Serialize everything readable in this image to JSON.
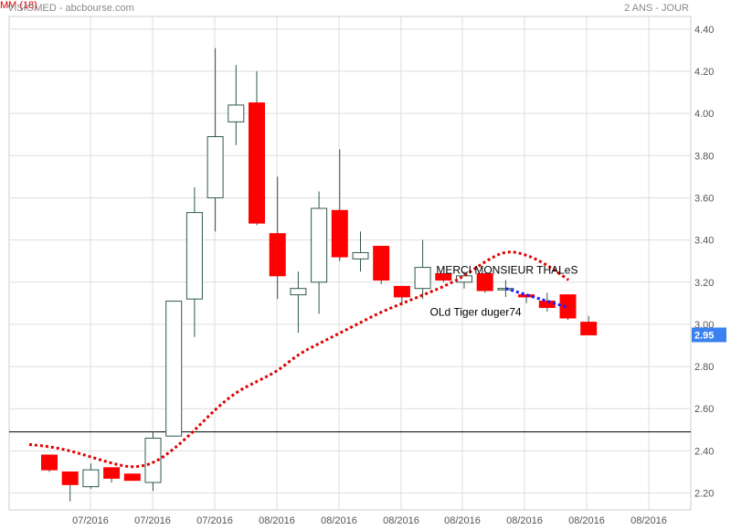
{
  "header": {
    "title": "VISIOMED - abcbourse.com",
    "period": "2 ANS - JOUR",
    "indicator": "MM (18)"
  },
  "colors": {
    "up_body": "#ffffff",
    "up_border": "#2f5a47",
    "down_body": "#ff0000",
    "wick": "#2f5a47",
    "ma": "#e00000",
    "trendline": "#1a1aff",
    "support": "#000000",
    "grid": "#dddddd",
    "price_badge": "#3b82f0"
  },
  "chart_data": {
    "type": "candlestick",
    "ylim": [
      2.12,
      4.46
    ],
    "y_ticks": [
      "2.20",
      "2.40",
      "2.60",
      "2.80",
      "3.00",
      "3.20",
      "3.40",
      "3.60",
      "3.80",
      "4.00",
      "4.20",
      "4.40"
    ],
    "x_ticks": [
      "07/2016",
      "07/2016",
      "07/2016",
      "08/2016",
      "08/2016",
      "08/2016",
      "08/2016",
      "08/2016",
      "08/2016",
      "08/2016"
    ],
    "candles": [
      {
        "o": 2.38,
        "h": 2.38,
        "l": 2.3,
        "c": 2.31
      },
      {
        "o": 2.3,
        "h": 2.3,
        "l": 2.16,
        "c": 2.24
      },
      {
        "o": 2.23,
        "h": 2.34,
        "l": 2.22,
        "c": 2.31
      },
      {
        "o": 2.32,
        "h": 2.32,
        "l": 2.25,
        "c": 2.27
      },
      {
        "o": 2.29,
        "h": 2.29,
        "l": 2.26,
        "c": 2.26
      },
      {
        "o": 2.25,
        "h": 2.49,
        "l": 2.21,
        "c": 2.46
      },
      {
        "o": 2.47,
        "h": 3.11,
        "l": 2.47,
        "c": 3.11
      },
      {
        "o": 3.12,
        "h": 3.65,
        "l": 2.94,
        "c": 3.53
      },
      {
        "o": 3.6,
        "h": 4.31,
        "l": 3.44,
        "c": 3.89
      },
      {
        "o": 3.96,
        "h": 4.23,
        "l": 3.85,
        "c": 4.04
      },
      {
        "o": 4.05,
        "h": 4.2,
        "l": 3.47,
        "c": 3.48
      },
      {
        "o": 3.43,
        "h": 3.7,
        "l": 3.12,
        "c": 3.23
      },
      {
        "o": 3.14,
        "h": 3.25,
        "l": 2.96,
        "c": 3.17
      },
      {
        "o": 3.2,
        "h": 3.63,
        "l": 3.05,
        "c": 3.55
      },
      {
        "o": 3.54,
        "h": 3.83,
        "l": 3.3,
        "c": 3.32
      },
      {
        "o": 3.31,
        "h": 3.44,
        "l": 3.25,
        "c": 3.34
      },
      {
        "o": 3.37,
        "h": 3.37,
        "l": 3.19,
        "c": 3.21
      },
      {
        "o": 3.18,
        "h": 3.18,
        "l": 3.09,
        "c": 3.13
      },
      {
        "o": 3.17,
        "h": 3.4,
        "l": 3.12,
        "c": 3.27
      },
      {
        "o": 3.24,
        "h": 3.24,
        "l": 3.2,
        "c": 3.21
      },
      {
        "o": 3.2,
        "h": 3.25,
        "l": 3.17,
        "c": 3.23
      },
      {
        "o": 3.24,
        "h": 3.24,
        "l": 3.15,
        "c": 3.16
      },
      {
        "o": 3.17,
        "h": 3.21,
        "l": 3.13,
        "c": 3.17
      },
      {
        "o": 3.14,
        "h": 3.14,
        "l": 3.1,
        "c": 3.13
      },
      {
        "o": 3.11,
        "h": 3.15,
        "l": 3.06,
        "c": 3.08
      },
      {
        "o": 3.14,
        "h": 3.14,
        "l": 3.02,
        "c": 3.03
      },
      {
        "o": 3.01,
        "h": 3.04,
        "l": 2.95,
        "c": 2.95
      }
    ],
    "moving_average": {
      "name": "MM (18)",
      "values": [
        2.43,
        2.42,
        2.4,
        2.37,
        2.34,
        2.32,
        2.34,
        2.41,
        2.5,
        2.6,
        2.68,
        2.73,
        2.78,
        2.86,
        2.91,
        2.96,
        3.01,
        3.06,
        3.1,
        3.14,
        3.18,
        3.23,
        3.3,
        3.35,
        3.33,
        3.28,
        3.21
      ]
    },
    "support_level": 2.49,
    "trendline": {
      "from_index": 22,
      "to_index": 25,
      "from_value": 3.17,
      "to_value": 3.08
    },
    "last_price": "2.95",
    "annotations": [
      {
        "text": "MERCI MONSIEUR THALeS",
        "index": 20.5,
        "value": 3.24
      },
      {
        "text": "OLd Tiger duger74",
        "index": 20.2,
        "value": 3.04
      }
    ]
  }
}
